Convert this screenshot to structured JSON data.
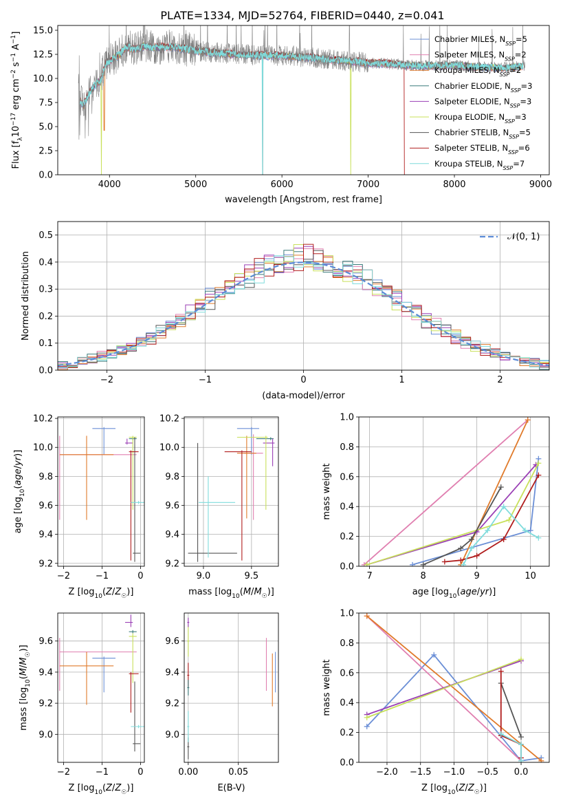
{
  "title": "PLATE=1334, MJD=52764, FIBERID=0440, z=0.041",
  "colors": {
    "Chabrier MILES": "#6b8fd6",
    "Salpeter MILES": "#e07fb0",
    "Kroupa MILES": "#e07a2a",
    "Chabrier ELODIE": "#3a7a7a",
    "Salpeter ELODIE": "#9a3fb5",
    "Kroupa ELODIE": "#c8e05a",
    "Chabrier STELIB": "#555555",
    "Salpeter STELIB": "#b01c1c",
    "Kroupa STELIB": "#7fdcdc"
  },
  "chart_data": [
    {
      "type": "line",
      "name": "spectrum",
      "xlabel": "wavelength [Angstrom, rest frame]",
      "ylabel": "Flux [f_λ 10^-17 erg cm^-2 s^-1 A^-1]",
      "xlim": [
        3400,
        9100
      ],
      "ylim": [
        0,
        15.5
      ],
      "xticks": [
        4000,
        5000,
        6000,
        7000,
        8000,
        9000
      ],
      "yticks": [
        0.0,
        2.5,
        5.0,
        7.5,
        10.0,
        12.5,
        15.0
      ],
      "legend": "top-right",
      "series": [
        {
          "name": "Chabrier MILES, N_SSP=5"
        },
        {
          "name": "Salpeter MILES, N_SSP=2"
        },
        {
          "name": "Kroupa MILES, N_SSP=2"
        },
        {
          "name": "Chabrier ELODIE, N_SSP=3"
        },
        {
          "name": "Salpeter ELODIE, N_SSP=3"
        },
        {
          "name": "Kroupa ELODIE, N_SSP=3"
        },
        {
          "name": "Chabrier STELIB, N_SSP=5"
        },
        {
          "name": "Salpeter STELIB, N_SSP=6"
        },
        {
          "name": "Kroupa STELIB, N_SSP=7"
        }
      ],
      "continuum": {
        "x": [
          3650,
          3700,
          3750,
          3800,
          3850,
          3900,
          3950,
          4000,
          4100,
          4200,
          4300,
          4400,
          4500,
          4700,
          5000,
          5200,
          5500,
          5800,
          6000,
          6300,
          6500,
          6800,
          7000,
          7300,
          7600,
          8000,
          8300,
          8600,
          8800
        ],
        "y": [
          7.8,
          7.2,
          8.2,
          9.0,
          9.5,
          9.8,
          11.5,
          11.8,
          12.4,
          13.3,
          13.0,
          13.4,
          13.2,
          13.3,
          12.9,
          12.7,
          12.5,
          12.4,
          12.4,
          12.2,
          12.0,
          11.8,
          11.6,
          11.5,
          11.3,
          11.4,
          11.2,
          11.1,
          11.3
        ]
      }
    },
    {
      "type": "line",
      "name": "residual-histogram",
      "xlabel": "(data-model)/error",
      "ylabel": "Normed distribution",
      "xlim": [
        -2.5,
        2.5
      ],
      "ylim": [
        0,
        0.55
      ],
      "xticks": [
        -2,
        -1,
        0,
        1,
        2
      ],
      "yticks": [
        0.0,
        0.1,
        0.2,
        0.3,
        0.4,
        0.5
      ],
      "legend_label": "𝒩(0, 1)",
      "bin_width": 0.1,
      "bin_start": -2.5
    },
    {
      "type": "scatter",
      "name": "age-vs-Z",
      "xlabel": "Z [log10(Z/Z☉)]",
      "ylabel": "age [log10(age/yr)]",
      "xlim": [
        -2.15,
        0.1
      ],
      "ylim": [
        9.18,
        10.21
      ],
      "xticks": [
        -2,
        -1,
        0
      ],
      "yticks": [
        9.2,
        9.4,
        9.6,
        9.8,
        10.0,
        10.2
      ]
    },
    {
      "type": "scatter",
      "name": "age-vs-mass",
      "xlabel": "mass [log10(M/M☉)]",
      "xlim": [
        8.8,
        9.78
      ],
      "ylim": [
        9.18,
        10.21
      ],
      "xticks": [
        9.0,
        9.5
      ],
      "yticks": [
        9.2,
        9.4,
        9.6,
        9.8,
        10.0,
        10.2
      ]
    },
    {
      "type": "line",
      "name": "mass-weight-vs-age",
      "xlabel": "age [log10(age/yr)]",
      "ylabel": "mass weight",
      "xlim": [
        6.8,
        10.35
      ],
      "ylim": [
        0,
        1.0
      ],
      "xticks": [
        7,
        8,
        9,
        10
      ],
      "yticks": [
        0.0,
        0.2,
        0.4,
        0.6,
        0.8,
        1.0
      ],
      "series": [
        {
          "name": "Chabrier MILES",
          "x": [
            7.8,
            10.0,
            10.15
          ],
          "y": [
            0.01,
            0.24,
            0.72
          ]
        },
        {
          "name": "Salpeter MILES",
          "x": [
            6.9,
            9.95
          ],
          "y": [
            0.01,
            0.98
          ]
        },
        {
          "name": "Kroupa MILES",
          "x": [
            8.7,
            9.95
          ],
          "y": [
            0.01,
            0.98
          ]
        },
        {
          "name": "Salpeter ELODIE",
          "x": [
            6.95,
            9.0,
            10.1
          ],
          "y": [
            0.01,
            0.23,
            0.68
          ]
        },
        {
          "name": "Kroupa ELODIE",
          "x": [
            6.95,
            9.6,
            10.15
          ],
          "y": [
            0.01,
            0.31,
            0.69
          ]
        },
        {
          "name": "Chabrier STELIB",
          "x": [
            8.0,
            8.7,
            8.9,
            9.45
          ],
          "y": [
            0.01,
            0.12,
            0.18,
            0.53
          ]
        },
        {
          "name": "Salpeter STELIB",
          "x": [
            8.4,
            8.7,
            9.0,
            9.5,
            10.15
          ],
          "y": [
            0.03,
            0.04,
            0.07,
            0.18,
            0.61
          ]
        },
        {
          "name": "Kroupa STELIB",
          "x": [
            8.75,
            8.9,
            9.2,
            9.5,
            9.9,
            10.15
          ],
          "y": [
            0.01,
            0.12,
            0.24,
            0.4,
            0.24,
            0.19
          ]
        }
      ]
    },
    {
      "type": "scatter",
      "name": "mass-vs-Z",
      "xlabel": "Z [log10(Z/Z☉)]",
      "ylabel": "mass [log10(M/M☉)]",
      "xlim": [
        -2.15,
        0.1
      ],
      "ylim": [
        8.82,
        9.78
      ],
      "xticks": [
        -2,
        -1,
        0
      ],
      "yticks": [
        9.0,
        9.2,
        9.4,
        9.6
      ]
    },
    {
      "type": "scatter",
      "name": "mass-vs-EBV",
      "xlabel": "E(B-V)",
      "xlim": [
        -0.004,
        0.09
      ],
      "ylim": [
        8.82,
        9.78
      ],
      "xticks": [
        0.0,
        0.05
      ],
      "yticks": [
        9.0,
        9.2,
        9.4,
        9.6
      ]
    },
    {
      "type": "line",
      "name": "mass-weight-vs-Z",
      "xlabel": "Z [log10(Z/Z☉)]",
      "ylabel": "mass weight",
      "xlim": [
        -2.42,
        0.42
      ],
      "ylim": [
        0,
        1.0
      ],
      "xticks": [
        -2.0,
        -1.5,
        -1.0,
        -0.5,
        0.0
      ],
      "yticks": [
        0.0,
        0.2,
        0.4,
        0.6,
        0.8,
        1.0
      ],
      "series": [
        {
          "name": "Chabrier MILES",
          "x": [
            -2.3,
            -1.3,
            0.0,
            0.3
          ],
          "y": [
            0.24,
            0.72,
            0.01,
            0.03
          ]
        },
        {
          "name": "Salpeter MILES",
          "x": [
            -2.3,
            0.0
          ],
          "y": [
            0.98,
            0.01
          ]
        },
        {
          "name": "Kroupa MILES",
          "x": [
            -2.3,
            0.3
          ],
          "y": [
            0.98,
            0.01
          ]
        },
        {
          "name": "Salpeter ELODIE",
          "x": [
            -2.3,
            0.0
          ],
          "y": [
            0.32,
            0.68
          ]
        },
        {
          "name": "Kroupa ELODIE",
          "x": [
            -2.3,
            0.0
          ],
          "y": [
            0.3,
            0.69
          ]
        },
        {
          "name": "Chabrier STELIB",
          "x": [
            -0.3,
            0.0
          ],
          "y": [
            0.53,
            0.17
          ]
        },
        {
          "name": "Salpeter STELIB",
          "x": [
            -0.3,
            -0.3,
            0.0,
            0.0
          ],
          "y": [
            0.61,
            0.18,
            0.12,
            0.03
          ]
        },
        {
          "name": "Kroupa STELIB",
          "x": [
            -0.3,
            0.0,
            0.0
          ],
          "y": [
            0.19,
            0.12,
            0.01
          ]
        }
      ]
    }
  ]
}
